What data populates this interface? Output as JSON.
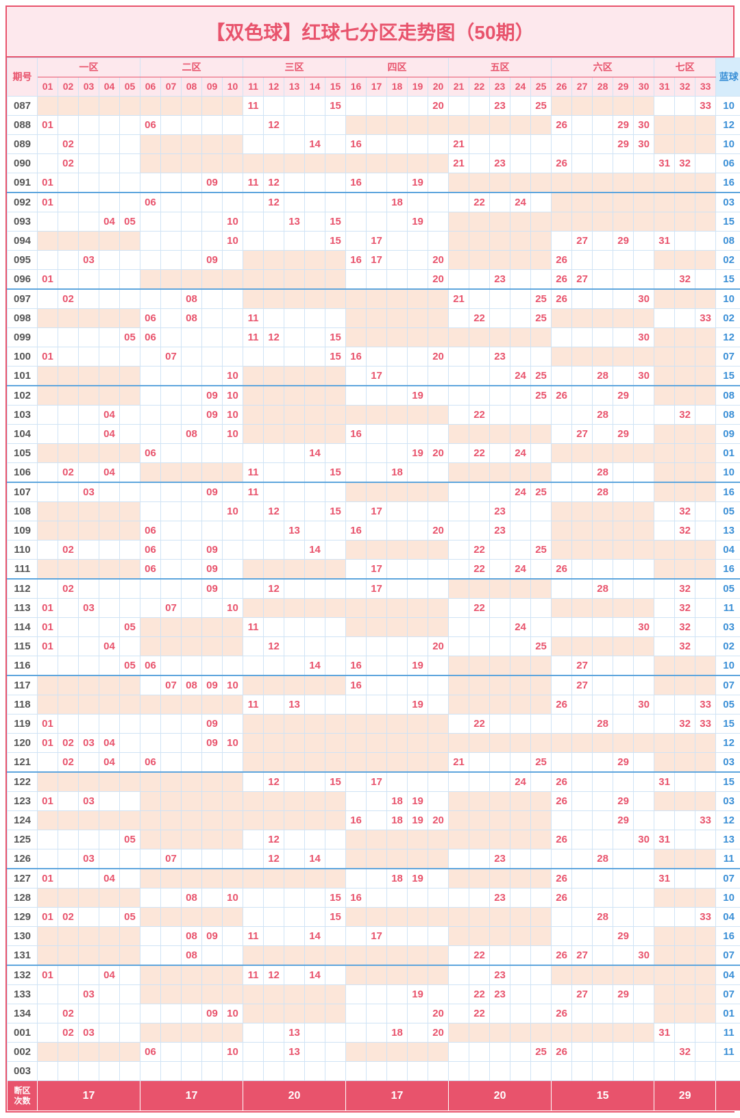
{
  "title": "【双色球】红球七分区走势图（50期）",
  "period_label": "期号",
  "blue_label": "蓝球",
  "footer_label": "断区\n次数",
  "zones": [
    {
      "name": "一区",
      "cols": [
        "01",
        "02",
        "03",
        "04",
        "05"
      ]
    },
    {
      "name": "二区",
      "cols": [
        "06",
        "07",
        "08",
        "09",
        "10"
      ]
    },
    {
      "name": "三区",
      "cols": [
        "11",
        "12",
        "13",
        "14",
        "15"
      ]
    },
    {
      "name": "四区",
      "cols": [
        "16",
        "17",
        "18",
        "19",
        "20"
      ]
    },
    {
      "name": "五区",
      "cols": [
        "21",
        "22",
        "23",
        "24",
        "25"
      ]
    },
    {
      "name": "六区",
      "cols": [
        "26",
        "27",
        "28",
        "29",
        "30"
      ]
    },
    {
      "name": "七区",
      "cols": [
        "31",
        "32",
        "33"
      ]
    }
  ],
  "footer_counts": [
    17,
    17,
    20,
    17,
    20,
    15,
    29
  ],
  "colors": {
    "accent_red": "#e8536c",
    "shade": "#fce6d9",
    "blue": "#3a8fd6",
    "header_bg": "#fde8ed",
    "blue_bg": "#d6ecfb",
    "grid": "#cfe3f5",
    "sep": "#5da5dd"
  },
  "rows": [
    {
      "p": "087",
      "r": [
        11,
        15,
        20,
        23,
        25,
        33
      ],
      "b": "10"
    },
    {
      "p": "088",
      "r": [
        1,
        6,
        12,
        26,
        29,
        30
      ],
      "b": "12"
    },
    {
      "p": "089",
      "r": [
        2,
        14,
        16,
        21,
        29,
        30
      ],
      "b": "10"
    },
    {
      "p": "090",
      "r": [
        2,
        21,
        23,
        26,
        31,
        32
      ],
      "b": "06"
    },
    {
      "p": "091",
      "r": [
        1,
        9,
        11,
        12,
        16,
        19
      ],
      "b": "16"
    },
    {
      "p": "092",
      "r": [
        1,
        6,
        12,
        18,
        22,
        24
      ],
      "b": "03",
      "sep": true
    },
    {
      "p": "093",
      "r": [
        4,
        5,
        10,
        13,
        15,
        19
      ],
      "b": "15"
    },
    {
      "p": "094",
      "r": [
        10,
        15,
        17,
        27,
        29,
        31
      ],
      "b": "08"
    },
    {
      "p": "095",
      "r": [
        3,
        9,
        16,
        17,
        20,
        26
      ],
      "b": "02"
    },
    {
      "p": "096",
      "r": [
        1,
        20,
        23,
        26,
        27,
        32
      ],
      "b": "15"
    },
    {
      "p": "097",
      "r": [
        2,
        8,
        21,
        25,
        26,
        30
      ],
      "b": "10",
      "sep": true
    },
    {
      "p": "098",
      "r": [
        6,
        8,
        11,
        22,
        25,
        33
      ],
      "b": "02"
    },
    {
      "p": "099",
      "r": [
        5,
        6,
        11,
        12,
        15,
        30
      ],
      "b": "12"
    },
    {
      "p": "100",
      "r": [
        1,
        7,
        15,
        16,
        20,
        23
      ],
      "b": "07"
    },
    {
      "p": "101",
      "r": [
        10,
        17,
        24,
        25,
        28,
        30
      ],
      "b": "15"
    },
    {
      "p": "102",
      "r": [
        9,
        10,
        19,
        25,
        26,
        29
      ],
      "b": "08",
      "sep": true
    },
    {
      "p": "103",
      "r": [
        4,
        9,
        10,
        22,
        28,
        32
      ],
      "b": "08"
    },
    {
      "p": "104",
      "r": [
        4,
        8,
        10,
        16,
        27,
        29
      ],
      "b": "09"
    },
    {
      "p": "105",
      "r": [
        6,
        14,
        19,
        20,
        22,
        24
      ],
      "b": "01"
    },
    {
      "p": "106",
      "r": [
        2,
        4,
        11,
        15,
        18,
        28
      ],
      "b": "10"
    },
    {
      "p": "107",
      "r": [
        3,
        9,
        11,
        24,
        25,
        28
      ],
      "b": "16",
      "sep": true
    },
    {
      "p": "108",
      "r": [
        10,
        12,
        15,
        17,
        23,
        32
      ],
      "b": "05"
    },
    {
      "p": "109",
      "r": [
        6,
        13,
        16,
        20,
        23,
        32
      ],
      "b": "13"
    },
    {
      "p": "110",
      "r": [
        2,
        6,
        9,
        14,
        22,
        25
      ],
      "b": "04"
    },
    {
      "p": "111",
      "r": [
        6,
        9,
        17,
        22,
        24,
        26
      ],
      "b": "16"
    },
    {
      "p": "112",
      "r": [
        2,
        9,
        12,
        17,
        28,
        32
      ],
      "b": "05",
      "sep": true
    },
    {
      "p": "113",
      "r": [
        1,
        3,
        7,
        10,
        22,
        32
      ],
      "b": "11"
    },
    {
      "p": "114",
      "r": [
        1,
        5,
        11,
        24,
        30,
        32
      ],
      "b": "03"
    },
    {
      "p": "115",
      "r": [
        1,
        4,
        12,
        20,
        25,
        32
      ],
      "b": "02"
    },
    {
      "p": "116",
      "r": [
        5,
        6,
        14,
        16,
        19,
        27
      ],
      "b": "10"
    },
    {
      "p": "117",
      "r": [
        7,
        8,
        9,
        10,
        16,
        27
      ],
      "b": "07",
      "sep": true
    },
    {
      "p": "118",
      "r": [
        11,
        13,
        19,
        26,
        30,
        33
      ],
      "b": "05"
    },
    {
      "p": "119",
      "r": [
        1,
        9,
        22,
        28,
        32,
        33
      ],
      "b": "15"
    },
    {
      "p": "120",
      "r": [
        1,
        2,
        3,
        4,
        9,
        10
      ],
      "b": "12"
    },
    {
      "p": "121",
      "r": [
        2,
        4,
        6,
        21,
        25,
        29
      ],
      "b": "03"
    },
    {
      "p": "122",
      "r": [
        12,
        15,
        17,
        24,
        26,
        31
      ],
      "b": "15",
      "sep": true
    },
    {
      "p": "123",
      "r": [
        1,
        3,
        18,
        19,
        26,
        29
      ],
      "b": "03"
    },
    {
      "p": "124",
      "r": [
        16,
        18,
        19,
        20,
        29,
        33
      ],
      "b": "12"
    },
    {
      "p": "125",
      "r": [
        5,
        12,
        26,
        30,
        31
      ],
      "b": "13"
    },
    {
      "p": "126",
      "r": [
        3,
        7,
        12,
        14,
        23,
        28
      ],
      "b": "11"
    },
    {
      "p": "127",
      "r": [
        1,
        4,
        18,
        19,
        26,
        31
      ],
      "b": "07",
      "sep": true
    },
    {
      "p": "128",
      "r": [
        8,
        10,
        15,
        16,
        23,
        26
      ],
      "b": "10"
    },
    {
      "p": "129",
      "r": [
        1,
        2,
        5,
        15,
        28,
        33
      ],
      "b": "04"
    },
    {
      "p": "130",
      "r": [
        8,
        9,
        11,
        14,
        17,
        29
      ],
      "b": "16"
    },
    {
      "p": "131",
      "r": [
        8,
        22,
        26,
        27,
        30
      ],
      "b": "07"
    },
    {
      "p": "132",
      "r": [
        1,
        4,
        11,
        12,
        14,
        23
      ],
      "b": "04",
      "sep": true
    },
    {
      "p": "133",
      "r": [
        3,
        19,
        22,
        23,
        27,
        29
      ],
      "b": "07"
    },
    {
      "p": "134",
      "r": [
        2,
        9,
        10,
        20,
        22,
        26
      ],
      "b": "01"
    },
    {
      "p": "001",
      "r": [
        2,
        3,
        13,
        18,
        20,
        31
      ],
      "b": "11"
    },
    {
      "p": "002",
      "r": [
        6,
        10,
        13,
        25,
        26,
        32
      ],
      "b": "11"
    },
    {
      "p": "003",
      "r": [],
      "b": ""
    }
  ]
}
